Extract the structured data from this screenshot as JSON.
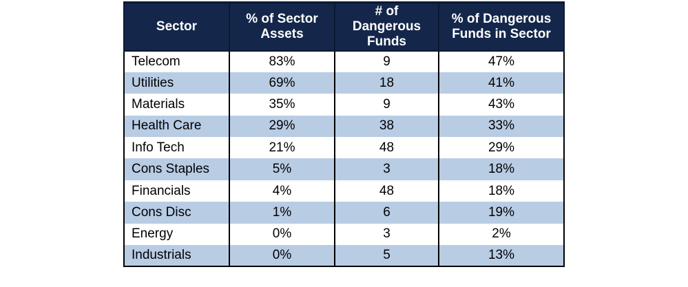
{
  "headers": [
    "Sector",
    "% of Sector Assets",
    "# of Dangerous Funds",
    "% of Dangerous Funds in Sector"
  ],
  "header_lines": [
    [
      "Sector"
    ],
    [
      "% of Sector",
      "Assets"
    ],
    [
      "# of",
      "Dangerous",
      "Funds"
    ],
    [
      "% of Dangerous",
      "Funds in Sector"
    ]
  ],
  "rows": [
    [
      "Telecom",
      "83%",
      "9",
      "47%"
    ],
    [
      "Utilities",
      "69%",
      "18",
      "41%"
    ],
    [
      "Materials",
      "35%",
      "9",
      "43%"
    ],
    [
      "Health Care",
      "29%",
      "38",
      "33%"
    ],
    [
      "Info Tech",
      "21%",
      "48",
      "29%"
    ],
    [
      "Cons Staples",
      "5%",
      "3",
      "18%"
    ],
    [
      "Financials",
      "4%",
      "48",
      "18%"
    ],
    [
      "Cons Disc",
      "1%",
      "6",
      "19%"
    ],
    [
      "Energy",
      "0%",
      "3",
      "2%"
    ],
    [
      "Industrials",
      "0%",
      "5",
      "13%"
    ]
  ],
  "colors": {
    "header_bg": "#14274a",
    "header_text": "#ffffff",
    "band": "#b8cce4"
  }
}
